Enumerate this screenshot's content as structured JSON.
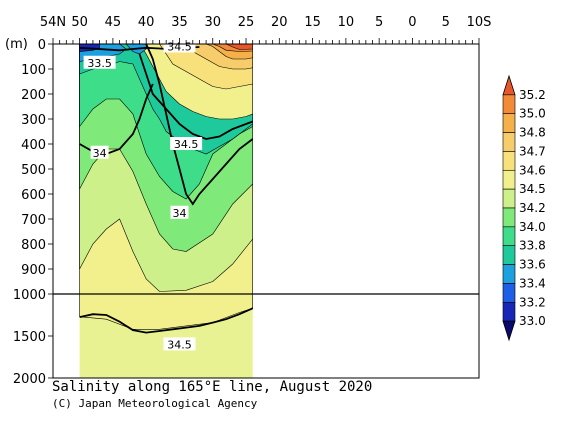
{
  "chart_data": {
    "type": "heatmap",
    "title": "Salinity along 165°E line, August 2020",
    "credit": "(C) Japan Meteorological Agency",
    "x_tick_labels": [
      "54N",
      "50",
      "45",
      "40",
      "35",
      "30",
      "25",
      "20",
      "15",
      "10",
      "5",
      "0",
      "5",
      "10S"
    ],
    "x_ticks_lat": [
      54,
      50,
      45,
      40,
      35,
      30,
      25,
      20,
      15,
      10,
      5,
      0,
      -5,
      -10
    ],
    "xlim": [
      54,
      -10
    ],
    "ylabel": "(m)",
    "y_tick_labels_upper": [
      "0",
      "100",
      "200",
      "300",
      "400",
      "500",
      "600",
      "700",
      "800",
      "900",
      "1000"
    ],
    "y_ticks_upper": [
      0,
      100,
      200,
      300,
      400,
      500,
      600,
      700,
      800,
      900,
      1000
    ],
    "y_tick_labels_lower": [
      "1500",
      "2000"
    ],
    "y_ticks_lower": [
      1500,
      2000
    ],
    "ylim": [
      0,
      2000
    ],
    "y_scale_break": 1000,
    "data_coverage_lat": [
      50,
      24
    ],
    "colorbar": {
      "levels": [
        "35.2",
        "35.0",
        "34.8",
        "34.7",
        "34.6",
        "34.5",
        "34.2",
        "34.0",
        "33.8",
        "33.6",
        "33.4",
        "33.2",
        "33.0"
      ],
      "colors": [
        "#e8572a",
        "#f28a3a",
        "#f5b04a",
        "#f7cc6a",
        "#f8e17a",
        "#f2f08c",
        "#cdf08a",
        "#7fe97a",
        "#3ddd8a",
        "#1ec99c",
        "#1da0e0",
        "#1e5fe8",
        "#1826b8",
        "#0a0a6e"
      ]
    },
    "contour_labels": [
      {
        "text": "34.5",
        "lat": 35,
        "depth": 10
      },
      {
        "text": "33.5",
        "lat": 47,
        "depth": 75
      },
      {
        "text": "34.5",
        "lat": 34,
        "depth": 400
      },
      {
        "text": "34",
        "lat": 47,
        "depth": 435
      },
      {
        "text": "34",
        "lat": 35,
        "depth": 675
      },
      {
        "text": "34.5",
        "lat": 35,
        "depth": 1600
      }
    ],
    "bands": [
      {
        "color": "#f2f08c",
        "points": [
          [
            50,
            1270
          ],
          [
            46,
            1300
          ],
          [
            42,
            1420
          ],
          [
            38,
            1420
          ],
          [
            34,
            1380
          ],
          [
            30,
            1340
          ],
          [
            26,
            1220
          ],
          [
            24,
            1170
          ]
        ]
      },
      {
        "color": "#cdf08a",
        "points": [
          [
            50,
            900
          ],
          [
            48,
            800
          ],
          [
            46,
            740
          ],
          [
            44,
            700
          ],
          [
            42,
            830
          ],
          [
            40,
            940
          ],
          [
            38,
            990
          ],
          [
            34,
            985
          ],
          [
            30,
            950
          ],
          [
            27,
            880
          ],
          [
            24,
            780
          ]
        ]
      },
      {
        "color": "#7fe97a",
        "points": [
          [
            50,
            580
          ],
          [
            48,
            480
          ],
          [
            46,
            420
          ],
          [
            44,
            420
          ],
          [
            42,
            510
          ],
          [
            40,
            640
          ],
          [
            38,
            760
          ],
          [
            36,
            820
          ],
          [
            34,
            830
          ],
          [
            30,
            760
          ],
          [
            27,
            640
          ],
          [
            24,
            560
          ]
        ]
      },
      {
        "color": "#3ddd8a",
        "points": [
          [
            50,
            330
          ],
          [
            48,
            260
          ],
          [
            46,
            220
          ],
          [
            44,
            220
          ],
          [
            42,
            280
          ],
          [
            41,
            360
          ],
          [
            40,
            440
          ],
          [
            38,
            530
          ],
          [
            36,
            590
          ],
          [
            34,
            620
          ],
          [
            32,
            560
          ],
          [
            30,
            440
          ],
          [
            28,
            400
          ],
          [
            26,
            360
          ],
          [
            24,
            330
          ]
        ]
      },
      {
        "color": "#1ec99c",
        "points": [
          [
            50,
            120
          ],
          [
            48,
            100
          ],
          [
            46,
            90
          ],
          [
            44,
            70
          ],
          [
            42,
            80
          ],
          [
            41,
            140
          ],
          [
            40,
            200
          ],
          [
            39,
            260
          ],
          [
            38,
            300
          ],
          [
            37,
            350
          ],
          [
            35,
            390
          ],
          [
            33,
            420
          ],
          [
            31,
            440
          ],
          [
            29,
            410
          ],
          [
            27,
            380
          ],
          [
            24,
            320
          ]
        ]
      },
      {
        "color": "#f2f08c",
        "points": [
          [
            50,
            0
          ],
          [
            41,
            0
          ],
          [
            40,
            40
          ],
          [
            39,
            90
          ],
          [
            38,
            140
          ],
          [
            37,
            190
          ],
          [
            35,
            240
          ],
          [
            33,
            270
          ],
          [
            31,
            290
          ],
          [
            29,
            300
          ],
          [
            27,
            300
          ],
          [
            25,
            290
          ],
          [
            24,
            280
          ]
        ]
      },
      {
        "color": "#f8e17a",
        "points": [
          [
            50,
            0
          ],
          [
            38,
            0
          ],
          [
            37,
            40
          ],
          [
            36,
            80
          ],
          [
            34,
            110
          ],
          [
            32,
            140
          ],
          [
            30,
            170
          ],
          [
            28,
            180
          ],
          [
            26,
            170
          ],
          [
            24,
            160
          ]
        ]
      },
      {
        "color": "#f7cc6a",
        "points": [
          [
            50,
            0
          ],
          [
            34,
            0
          ],
          [
            33,
            30
          ],
          [
            31,
            60
          ],
          [
            29,
            90
          ],
          [
            27,
            100
          ],
          [
            25,
            100
          ],
          [
            24,
            95
          ]
        ]
      },
      {
        "color": "#f5b04a",
        "points": [
          [
            50,
            0
          ],
          [
            31,
            0
          ],
          [
            30,
            10
          ],
          [
            29,
            30
          ],
          [
            28,
            50
          ],
          [
            27,
            60
          ],
          [
            25,
            60
          ],
          [
            24,
            55
          ]
        ]
      },
      {
        "color": "#f28a3a",
        "points": [
          [
            50,
            0
          ],
          [
            30,
            0
          ],
          [
            29,
            10
          ],
          [
            28,
            25
          ],
          [
            26,
            30
          ],
          [
            24,
            28
          ]
        ]
      }
    ],
    "blobs": [
      {
        "color": "#1da0e0",
        "points": [
          [
            50,
            0
          ],
          [
            44,
            0
          ],
          [
            43,
            20
          ],
          [
            44,
            40
          ],
          [
            46,
            50
          ],
          [
            48,
            60
          ],
          [
            50,
            70
          ]
        ]
      },
      {
        "color": "#1826b8",
        "points": [
          [
            50,
            0
          ],
          [
            47,
            0
          ],
          [
            47,
            15
          ],
          [
            48,
            25
          ],
          [
            50,
            30
          ]
        ]
      },
      {
        "color": "#1da0e0",
        "points": [
          [
            43,
            0
          ],
          [
            40,
            0
          ],
          [
            40,
            20
          ],
          [
            41,
            40
          ],
          [
            42,
            30
          ]
        ]
      },
      {
        "color": "#e8572a",
        "points": [
          [
            28,
            0
          ],
          [
            24,
            0
          ],
          [
            24,
            20
          ],
          [
            26,
            22
          ],
          [
            27,
            12
          ]
        ]
      }
    ],
    "thick_contours": [
      {
        "value": "34.5",
        "points": [
          [
            50,
            1275
          ],
          [
            48,
            1240
          ],
          [
            46,
            1250
          ],
          [
            44,
            1330
          ],
          [
            42,
            1430
          ],
          [
            40,
            1460
          ],
          [
            38,
            1440
          ],
          [
            36,
            1420
          ],
          [
            34,
            1400
          ],
          [
            32,
            1380
          ],
          [
            30,
            1340
          ],
          [
            28,
            1300
          ],
          [
            26,
            1240
          ],
          [
            24,
            1170
          ]
        ]
      },
      {
        "value": "34",
        "points": [
          [
            50,
            400
          ],
          [
            48,
            430
          ],
          [
            46,
            440
          ],
          [
            44,
            420
          ],
          [
            42,
            360
          ],
          [
            41,
            300
          ],
          [
            40,
            220
          ],
          [
            39,
            160
          ]
        ]
      },
      {
        "value": "34",
        "points": [
          [
            40,
            0
          ],
          [
            39,
            60
          ],
          [
            38,
            160
          ],
          [
            37,
            280
          ],
          [
            36,
            400
          ],
          [
            35,
            500
          ],
          [
            34,
            600
          ],
          [
            33,
            640
          ],
          [
            32,
            600
          ],
          [
            30,
            540
          ],
          [
            28,
            480
          ],
          [
            26,
            420
          ],
          [
            24,
            380
          ]
        ]
      },
      {
        "value": "34.5",
        "points": [
          [
            41,
            40
          ],
          [
            40,
            120
          ],
          [
            39,
            200
          ],
          [
            37,
            260
          ],
          [
            35,
            320
          ],
          [
            33,
            360
          ],
          [
            31,
            380
          ],
          [
            29,
            370
          ],
          [
            27,
            340
          ],
          [
            25,
            320
          ],
          [
            24,
            310
          ]
        ]
      },
      {
        "value": "34.5",
        "points": [
          [
            50,
            15
          ],
          [
            44,
            25
          ],
          [
            42,
            20
          ],
          [
            40,
            15
          ],
          [
            38,
            18
          ],
          [
            36,
            22
          ],
          [
            34,
            15
          ],
          [
            32,
            12
          ]
        ]
      }
    ]
  }
}
